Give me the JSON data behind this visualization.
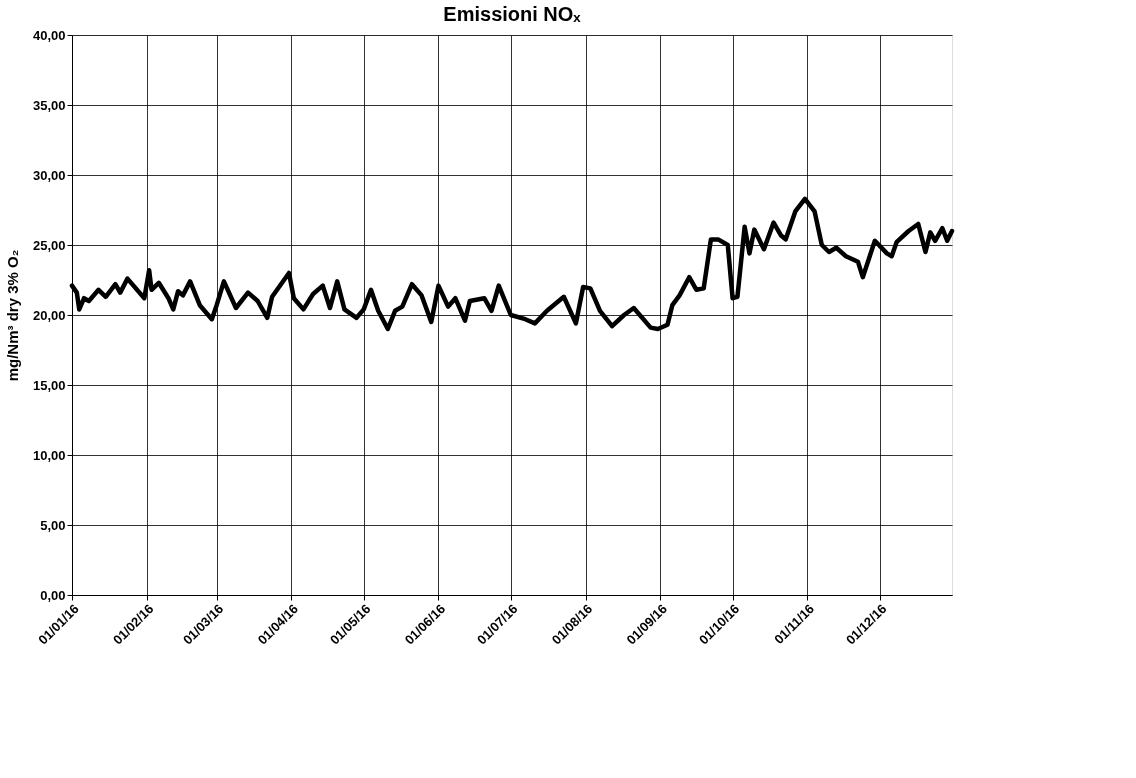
{
  "chart_data": {
    "type": "line",
    "title": "Emissioni NOₓ",
    "ylabel": "mg/Nm³ dry 3% O₂",
    "x": [
      "2016-01-01",
      "2016-01-03",
      "2016-01-04",
      "2016-01-06",
      "2016-01-08",
      "2016-01-12",
      "2016-01-15",
      "2016-01-19",
      "2016-01-21",
      "2016-01-24",
      "2016-01-31",
      "2016-02-02",
      "2016-02-03",
      "2016-02-06",
      "2016-02-10",
      "2016-02-12",
      "2016-02-14",
      "2016-02-16",
      "2016-02-19",
      "2016-02-23",
      "2016-02-28",
      "2016-03-01",
      "2016-03-04",
      "2016-03-09",
      "2016-03-14",
      "2016-03-18",
      "2016-03-22",
      "2016-03-24",
      "2016-03-31",
      "2016-04-02",
      "2016-04-06",
      "2016-04-10",
      "2016-04-14",
      "2016-04-17",
      "2016-04-20",
      "2016-04-23",
      "2016-04-28",
      "2016-05-01",
      "2016-05-04",
      "2016-05-07",
      "2016-05-11",
      "2016-05-14",
      "2016-05-17",
      "2016-05-21",
      "2016-05-25",
      "2016-05-29",
      "2016-06-01",
      "2016-06-05",
      "2016-06-08",
      "2016-06-12",
      "2016-06-14",
      "2016-06-20",
      "2016-06-23",
      "2016-06-26",
      "2016-07-01",
      "2016-07-07",
      "2016-07-11",
      "2016-07-16",
      "2016-07-23",
      "2016-07-28",
      "2016-07-31",
      "2016-08-03",
      "2016-08-07",
      "2016-08-12",
      "2016-08-17",
      "2016-08-21",
      "2016-08-28",
      "2016-08-31",
      "2016-09-04",
      "2016-09-06",
      "2016-09-09",
      "2016-09-13",
      "2016-09-16",
      "2016-09-19",
      "2016-09-22",
      "2016-09-25",
      "2016-09-29",
      "2016-10-01",
      "2016-10-03",
      "2016-10-06",
      "2016-10-08",
      "2016-10-10",
      "2016-10-14",
      "2016-10-18",
      "2016-10-21",
      "2016-10-23",
      "2016-10-27",
      "2016-10-31",
      "2016-11-04",
      "2016-11-07",
      "2016-11-10",
      "2016-11-13",
      "2016-11-17",
      "2016-11-22",
      "2016-11-24",
      "2016-11-29",
      "2016-12-04",
      "2016-12-06",
      "2016-12-08",
      "2016-12-13",
      "2016-12-17",
      "2016-12-20",
      "2016-12-22",
      "2016-12-24",
      "2016-12-27",
      "2016-12-29",
      "2016-12-31"
    ],
    "series": [
      {
        "color": "#000000",
        "values": [
          22.1,
          21.6,
          20.4,
          21.2,
          21.0,
          21.8,
          21.3,
          22.2,
          21.6,
          22.6,
          21.2,
          23.2,
          21.8,
          22.3,
          21.2,
          20.4,
          21.7,
          21.4,
          22.4,
          20.7,
          19.7,
          20.7,
          22.4,
          20.5,
          21.6,
          21.0,
          19.8,
          21.3,
          23.0,
          21.2,
          20.4,
          21.5,
          22.1,
          20.5,
          22.4,
          20.4,
          19.8,
          20.4,
          21.8,
          20.3,
          19.0,
          20.3,
          20.6,
          22.2,
          21.4,
          19.5,
          22.1,
          20.6,
          21.2,
          19.6,
          21.0,
          21.2,
          20.3,
          22.1,
          20.0,
          19.7,
          19.4,
          20.3,
          21.3,
          19.4,
          22.0,
          21.9,
          20.3,
          19.2,
          20.0,
          20.5,
          19.1,
          19.0,
          19.3,
          20.7,
          21.4,
          22.7,
          21.8,
          21.9,
          25.4,
          25.4,
          25.0,
          21.2,
          21.3,
          26.3,
          24.4,
          26.1,
          24.7,
          26.6,
          25.7,
          25.4,
          27.4,
          28.3,
          27.4,
          25.0,
          24.5,
          24.8,
          24.2,
          23.8,
          22.7,
          25.3,
          24.4,
          24.2,
          25.2,
          26.0,
          26.5,
          24.5,
          25.9,
          25.3,
          26.2,
          25.3,
          26.0
        ]
      }
    ],
    "xlim": [
      "2016-01-01",
      "2016-12-31"
    ],
    "xticks": [
      {
        "value": "2016-01-01",
        "label": "01/01/16"
      },
      {
        "value": "2016-02-01",
        "label": "01/02/16"
      },
      {
        "value": "2016-03-01",
        "label": "01/03/16"
      },
      {
        "value": "2016-04-01",
        "label": "01/04/16"
      },
      {
        "value": "2016-05-01",
        "label": "01/05/16"
      },
      {
        "value": "2016-06-01",
        "label": "01/06/16"
      },
      {
        "value": "2016-07-01",
        "label": "01/07/16"
      },
      {
        "value": "2016-08-01",
        "label": "01/08/16"
      },
      {
        "value": "2016-09-01",
        "label": "01/09/16"
      },
      {
        "value": "2016-10-01",
        "label": "01/10/16"
      },
      {
        "value": "2016-11-01",
        "label": "01/11/16"
      },
      {
        "value": "2016-12-01",
        "label": "01/12/16"
      }
    ],
    "ylim": [
      0,
      40
    ],
    "yticks": [
      {
        "value": 0,
        "label": "0,00"
      },
      {
        "value": 5,
        "label": "5,00"
      },
      {
        "value": 10,
        "label": "10,00"
      },
      {
        "value": 15,
        "label": "15,00"
      },
      {
        "value": 20,
        "label": "20,00"
      },
      {
        "value": 25,
        "label": "25,00"
      },
      {
        "value": 30,
        "label": "30,00"
      },
      {
        "value": 35,
        "label": "35,00"
      },
      {
        "value": 40,
        "label": "40,00"
      }
    ],
    "grid": true,
    "marker": "none",
    "line_style": "solid"
  }
}
